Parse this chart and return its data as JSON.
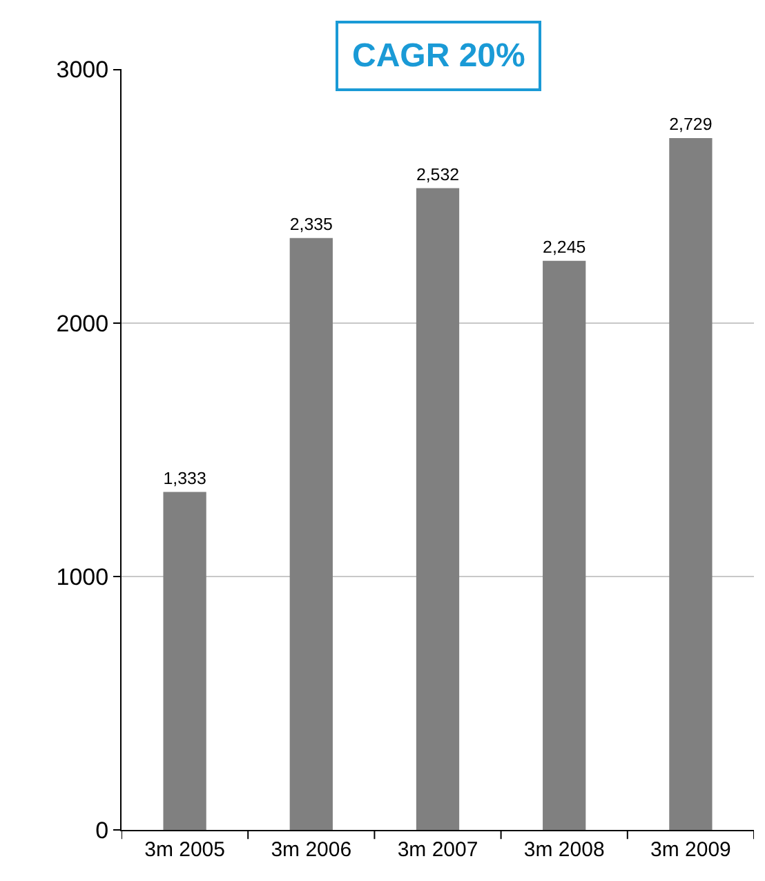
{
  "chart_data": {
    "type": "bar",
    "title": "CAGR 20%",
    "categories": [
      "3m 2005",
      "3m 2006",
      "3m 2007",
      "3m 2008",
      "3m 2009"
    ],
    "values": [
      1333,
      2335,
      2532,
      2245,
      2729
    ],
    "value_labels": [
      "1,333",
      "2,335",
      "2,532",
      "2,245",
      "2,729"
    ],
    "color": "#808080",
    "ylim": [
      0,
      3000
    ],
    "yticks": [
      0,
      1000,
      2000,
      3000
    ],
    "grid": "y"
  }
}
